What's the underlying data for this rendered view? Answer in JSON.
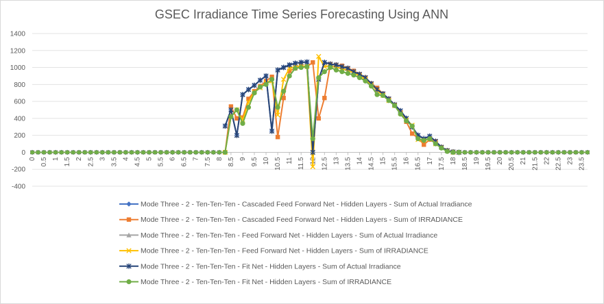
{
  "chart_data": {
    "type": "line",
    "title": "GSEC Irradiance Time Series Forecasting Using ANN",
    "xlabel": "",
    "ylabel": "",
    "ylim": [
      -400,
      1400
    ],
    "yticks": [
      -400,
      -200,
      0,
      200,
      400,
      600,
      800,
      1000,
      1200,
      1400
    ],
    "xlim": [
      0,
      23.75
    ],
    "xticks": [
      "0",
      "0.5",
      "1",
      "1.5",
      "2",
      "2.5",
      "3",
      "3.5",
      "4",
      "4.5",
      "5",
      "5.5",
      "6",
      "6.5",
      "7",
      "7.5",
      "8",
      "8.5",
      "9",
      "9.5",
      "10",
      "10.5",
      "11",
      "11.5",
      "12",
      "12.5",
      "13",
      "13.5",
      "14",
      "14.5",
      "15",
      "15.5",
      "16",
      "16.5",
      "17",
      "17.5",
      "18",
      "18.5",
      "19",
      "19.5",
      "20",
      "20.5",
      "21",
      "21.5",
      "22",
      "22.5",
      "23",
      "23.5"
    ],
    "grid": true,
    "legend_position": "bottom",
    "x": [
      8.25,
      8.5,
      8.75,
      9,
      9.25,
      9.5,
      9.75,
      10,
      10.25,
      10.5,
      10.75,
      11,
      11.25,
      11.5,
      11.75,
      12,
      12.25,
      12.5,
      12.75,
      13,
      13.25,
      13.5,
      13.75,
      14,
      14.25,
      14.5,
      14.75,
      15,
      15.25,
      15.5,
      15.75,
      16,
      16.25,
      16.5,
      16.75,
      17,
      17.25,
      17.5,
      17.75,
      18,
      18.25
    ],
    "series": [
      {
        "name": "Mode Three - 2 - Ten-Ten-Ten - Cascaded Feed Forward Net - Hidden Layers - Sum of Actual Irradiance",
        "color": "#4472c4",
        "marker": "diamond",
        "values": [
          310,
          500,
          200,
          680,
          740,
          790,
          850,
          900,
          250,
          970,
          1000,
          1030,
          1050,
          1060,
          1065,
          0,
          860,
          1060,
          1040,
          1030,
          1010,
          990,
          950,
          920,
          880,
          810,
          740,
          690,
          630,
          560,
          490,
          400,
          300,
          200,
          160,
          190,
          130,
          60,
          20,
          5,
          0
        ]
      },
      {
        "name": "Mode Three - 2 - Ten-Ten-Ten - Cascaded Feed Forward Net - Hidden Layers - Sum of IRRADIANCE",
        "color": "#ed7d31",
        "marker": "square",
        "values": [
          0,
          540,
          400,
          410,
          630,
          720,
          780,
          840,
          890,
          180,
          640,
          960,
          990,
          1010,
          1010,
          1060,
          400,
          640,
          1040,
          1030,
          1020,
          990,
          960,
          920,
          880,
          810,
          760,
          690,
          630,
          560,
          470,
          360,
          220,
          170,
          90,
          150,
          130,
          60,
          20,
          5,
          0
        ]
      },
      {
        "name": "Mode Three - 2 - Ten-Ten-Ten - Feed Forward Net - Hidden Layers - Sum of Actual Irradiance",
        "color": "#a5a5a5",
        "marker": "triangle",
        "values": [
          310,
          500,
          200,
          680,
          740,
          790,
          850,
          900,
          250,
          970,
          1000,
          1030,
          1050,
          1060,
          1065,
          0,
          860,
          1060,
          1040,
          1030,
          1010,
          990,
          950,
          920,
          880,
          810,
          740,
          690,
          630,
          560,
          490,
          400,
          300,
          200,
          160,
          190,
          130,
          60,
          20,
          5,
          0
        ]
      },
      {
        "name": "Mode Three - 2 - Ten-Ten-Ten - Feed Forward Net - Hidden Layers - Sum of IRRADIANCE",
        "color": "#ffc000",
        "marker": "x",
        "values": [
          0,
          420,
          500,
          380,
          590,
          710,
          760,
          820,
          840,
          440,
          860,
          990,
          1010,
          1020,
          1010,
          -170,
          1130,
          1010,
          1020,
          1000,
          990,
          960,
          940,
          900,
          860,
          800,
          730,
          670,
          610,
          550,
          460,
          380,
          320,
          150,
          140,
          160,
          100,
          60,
          20,
          0,
          0
        ]
      },
      {
        "name": "Mode Three - 2 - Ten-Ten-Ten - Fit Net - Hidden Layers - Sum of Actual Irradiance",
        "color": "#264478",
        "marker": "star",
        "values": [
          310,
          500,
          200,
          680,
          740,
          790,
          850,
          900,
          250,
          970,
          1000,
          1030,
          1050,
          1060,
          1065,
          0,
          860,
          1060,
          1040,
          1030,
          1010,
          990,
          950,
          920,
          880,
          810,
          740,
          690,
          630,
          560,
          490,
          400,
          300,
          200,
          160,
          190,
          130,
          60,
          20,
          5,
          0
        ]
      },
      {
        "name": "Mode Three - 2 - Ten-Ten-Ten - Fit Net - Hidden Layers - Sum of IRRADIANCE",
        "color": "#70ad47",
        "marker": "circle",
        "values": [
          0,
          420,
          500,
          340,
          530,
          700,
          770,
          800,
          860,
          530,
          720,
          900,
          990,
          1000,
          1010,
          160,
          880,
          950,
          1000,
          970,
          950,
          930,
          910,
          880,
          840,
          780,
          680,
          670,
          610,
          550,
          450,
          370,
          310,
          160,
          140,
          160,
          100,
          50,
          10,
          0,
          0
        ]
      }
    ]
  }
}
